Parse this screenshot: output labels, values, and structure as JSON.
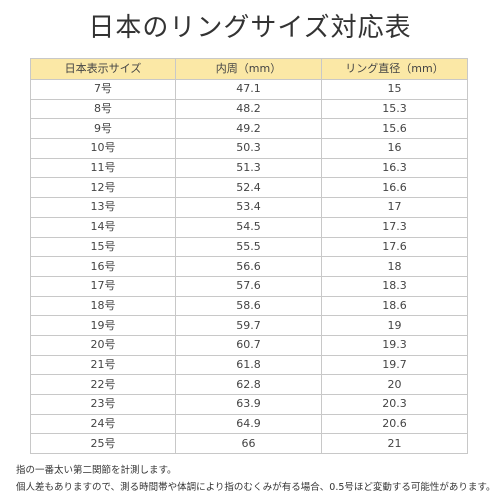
{
  "title": "日本のリングサイズ対応表",
  "table": {
    "headers": [
      "日本表示サイズ",
      "内周（mm）",
      "リング直径（mm）"
    ],
    "rows": [
      [
        "7号",
        "47.1",
        "15"
      ],
      [
        "8号",
        "48.2",
        "15.3"
      ],
      [
        "9号",
        "49.2",
        "15.6"
      ],
      [
        "10号",
        "50.3",
        "16"
      ],
      [
        "11号",
        "51.3",
        "16.3"
      ],
      [
        "12号",
        "52.4",
        "16.6"
      ],
      [
        "13号",
        "53.4",
        "17"
      ],
      [
        "14号",
        "54.5",
        "17.3"
      ],
      [
        "15号",
        "55.5",
        "17.6"
      ],
      [
        "16号",
        "56.6",
        "18"
      ],
      [
        "17号",
        "57.6",
        "18.3"
      ],
      [
        "18号",
        "58.6",
        "18.6"
      ],
      [
        "19号",
        "59.7",
        "19"
      ],
      [
        "20号",
        "60.7",
        "19.3"
      ],
      [
        "21号",
        "61.8",
        "19.7"
      ],
      [
        "22号",
        "62.8",
        "20"
      ],
      [
        "23号",
        "63.9",
        "20.3"
      ],
      [
        "24号",
        "64.9",
        "20.6"
      ],
      [
        "25号",
        "66",
        "21"
      ]
    ]
  },
  "notes": [
    "指の一番太い第二関節を計測します。",
    "個人差もありますので、測る時間帯や体調により指のむくみが有る場合、0.5号ほど変動する可能性があります。"
  ],
  "colors": {
    "header_background": "#fbe8a6",
    "border": "#c8c8c8",
    "text": "#444444"
  }
}
